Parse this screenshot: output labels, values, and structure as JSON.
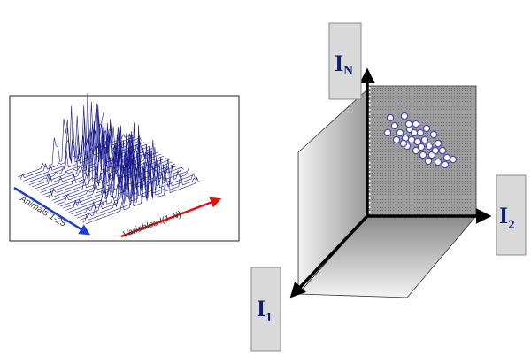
{
  "spectra_panel": {
    "animals_label": "Animals 1-25",
    "variables_label": "Variables I(1-N)",
    "trace_count": 25
  },
  "axes_3d": {
    "vertical": {
      "main": "I",
      "sub": "N"
    },
    "horizontal": {
      "main": "I",
      "sub": "2"
    },
    "depth": {
      "main": "I",
      "sub": "1"
    }
  },
  "colors": {
    "trace": "#1a1a8c",
    "animals_arrow": "#1f3fd1",
    "variables_arrow": "#e01010",
    "label_text": "#0a1e78",
    "label_box": "#d9d9d9",
    "plane_dark": "#8c8c8c",
    "plane_light": "#d6d6d6",
    "point_fill": "#ffffff",
    "point_stroke": "#4a4ab8"
  },
  "icons": {
    "animals_arrow": "arrow-left-down-icon",
    "variables_arrow": "arrow-up-right-icon"
  }
}
